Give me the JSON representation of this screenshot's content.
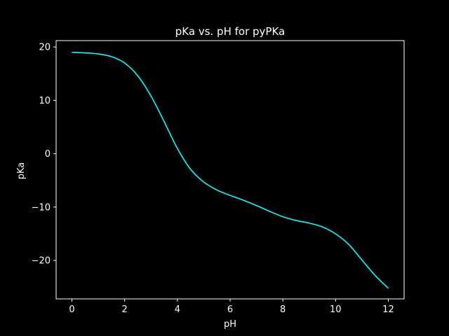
{
  "chart_data": {
    "type": "line",
    "title": "pKa vs. pH for pyPKa",
    "xlabel": "pH",
    "ylabel": "pKa",
    "xlim": [
      -0.6,
      12.6
    ],
    "ylim": [
      -27.2,
      21.2
    ],
    "x_ticks": [
      0,
      2,
      4,
      6,
      8,
      10,
      12
    ],
    "y_ticks": [
      20,
      10,
      0,
      -10,
      -20
    ],
    "y_tick_labels": [
      "20",
      "10",
      "0",
      "−10",
      "−20"
    ],
    "grid": false,
    "background_color": "#000000",
    "axis_color": "#ffffff",
    "series": [
      {
        "color": "#00ffff",
        "x": [
          0,
          0.5,
          1,
          1.5,
          2,
          2.5,
          3,
          3.5,
          4,
          4.5,
          5,
          5.5,
          6,
          6.5,
          7,
          7.5,
          8,
          8.5,
          9,
          9.5,
          10,
          10.5,
          11,
          11.5,
          12
        ],
        "y": [
          19.0,
          18.9,
          18.7,
          18.2,
          17.0,
          14.6,
          10.8,
          6.0,
          1.0,
          -2.9,
          -5.3,
          -6.8,
          -7.8,
          -8.7,
          -9.7,
          -10.8,
          -11.8,
          -12.5,
          -13.0,
          -13.7,
          -15.0,
          -17.0,
          -19.9,
          -22.8,
          -25.2
        ]
      }
    ]
  }
}
